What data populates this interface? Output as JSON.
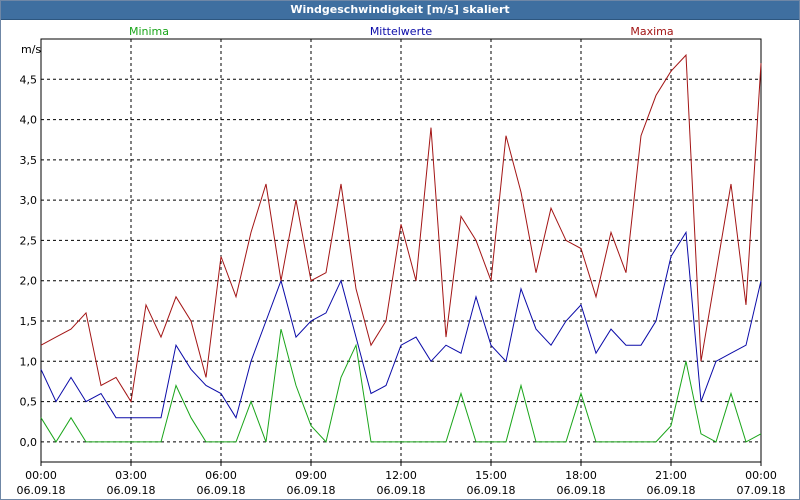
{
  "window": {
    "title": "Windgeschwindigkeit [m/s] skaliert"
  },
  "chart_data": {
    "type": "line",
    "title": "Windgeschwindigkeit [m/s] skaliert",
    "ylabel": "m/s",
    "xlabel": "",
    "ylim": [
      -0.25,
      5.0
    ],
    "xlim": [
      0,
      288
    ],
    "grid": true,
    "legend_position": "top",
    "y_ticks": [
      "0,0",
      "0,5",
      "1,0",
      "1,5",
      "2,0",
      "2,5",
      "3,0",
      "3,5",
      "4,0",
      "4,5"
    ],
    "x_ticks": [
      {
        "time": "00:00",
        "date": "06.09.18"
      },
      {
        "time": "03:00",
        "date": "06.09.18"
      },
      {
        "time": "06:00",
        "date": "06.09.18"
      },
      {
        "time": "09:00",
        "date": "06.09.18"
      },
      {
        "time": "12:00",
        "date": "06.09.18"
      },
      {
        "time": "15:00",
        "date": "06.09.18"
      },
      {
        "time": "18:00",
        "date": "06.09.18"
      },
      {
        "time": "21:00",
        "date": "06.09.18"
      },
      {
        "time": "00:00",
        "date": "07.09.18"
      }
    ],
    "x": [
      0,
      6,
      12,
      18,
      24,
      30,
      36,
      42,
      48,
      54,
      60,
      66,
      72,
      78,
      84,
      90,
      96,
      102,
      108,
      114,
      120,
      126,
      132,
      138,
      144,
      150,
      156,
      162,
      168,
      174,
      180,
      186,
      192,
      198,
      204,
      210,
      216,
      222,
      228,
      234,
      240,
      246,
      252,
      258,
      264,
      270,
      276,
      282,
      288
    ],
    "series": [
      {
        "name": "Minima",
        "color": "#1aa51a",
        "values": [
          0.3,
          0.0,
          0.3,
          0.0,
          0.0,
          0.0,
          0.0,
          0.0,
          0.0,
          0.7,
          0.3,
          0.0,
          0.0,
          0.0,
          0.5,
          0.0,
          1.4,
          0.7,
          0.2,
          0.0,
          0.8,
          1.2,
          0.0,
          0.0,
          0.0,
          0.0,
          0.0,
          0.0,
          0.6,
          0.0,
          0.0,
          0.0,
          0.7,
          0.0,
          0.0,
          0.0,
          0.6,
          0.0,
          0.0,
          0.0,
          0.0,
          0.0,
          0.2,
          1.0,
          0.1,
          0.0,
          0.6,
          0.0,
          0.1
        ]
      },
      {
        "name": "Mittelwerte",
        "color": "#0b0ba8",
        "values": [
          0.9,
          0.5,
          0.8,
          0.5,
          0.6,
          0.3,
          0.3,
          0.3,
          0.3,
          1.2,
          0.9,
          0.7,
          0.6,
          0.3,
          1.0,
          1.5,
          2.0,
          1.3,
          1.5,
          1.6,
          2.0,
          1.3,
          0.6,
          0.7,
          1.2,
          1.3,
          1.0,
          1.2,
          1.1,
          1.8,
          1.2,
          1.0,
          1.9,
          1.4,
          1.2,
          1.5,
          1.7,
          1.1,
          1.4,
          1.2,
          1.2,
          1.5,
          2.3,
          2.6,
          0.5,
          1.0,
          1.1,
          1.2,
          2.0
        ]
      },
      {
        "name": "Maxima",
        "color": "#a31515",
        "values": [
          1.2,
          1.3,
          1.4,
          1.6,
          0.7,
          0.8,
          0.5,
          1.7,
          1.3,
          1.8,
          1.5,
          0.8,
          2.3,
          1.8,
          2.6,
          3.2,
          2.0,
          3.0,
          2.0,
          2.1,
          3.2,
          1.9,
          1.2,
          1.5,
          2.7,
          2.0,
          3.9,
          1.3,
          2.8,
          2.5,
          2.0,
          3.8,
          3.1,
          2.1,
          2.9,
          2.5,
          2.4,
          1.8,
          2.6,
          2.1,
          3.8,
          4.3,
          4.6,
          4.8,
          1.0,
          2.1,
          3.2,
          1.7,
          4.7
        ]
      }
    ]
  }
}
